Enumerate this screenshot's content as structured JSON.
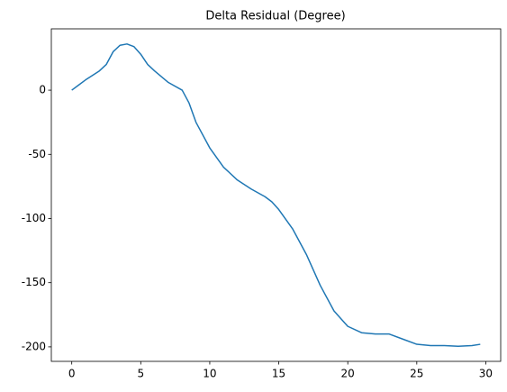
{
  "chart_data": {
    "type": "line",
    "title": "Delta Residual (Degree)",
    "x": [
      0,
      0.5,
      1,
      2,
      2.5,
      3,
      3.5,
      4,
      4.5,
      5,
      5.5,
      6,
      7,
      8,
      8.5,
      9,
      10,
      11,
      12,
      13,
      14,
      14.5,
      15,
      16,
      17,
      18,
      19,
      20,
      21,
      22,
      23,
      24,
      25,
      26,
      27,
      28,
      29,
      29.6
    ],
    "series": [
      {
        "name": "Delta Residual",
        "color": "#1f77b4",
        "values": [
          0,
          4,
          8,
          15,
          20,
          30,
          35,
          36,
          34,
          28,
          20,
          15,
          6,
          0,
          -10,
          -25,
          -45,
          -60,
          -70,
          -77,
          -83,
          -87,
          -93,
          -108,
          -128,
          -152,
          -172,
          -184,
          -189,
          -190,
          -190,
          -194,
          -198,
          -199,
          -199,
          -199.5,
          -199,
          -198
        ]
      }
    ],
    "xlim": [
      -1.48,
      31.08
    ],
    "xticks": [
      0,
      5,
      10,
      15,
      20,
      25,
      30
    ],
    "ylim": [
      -211.3,
      47.8
    ],
    "yticks": [
      -200,
      -150,
      -100,
      -50,
      0
    ]
  }
}
